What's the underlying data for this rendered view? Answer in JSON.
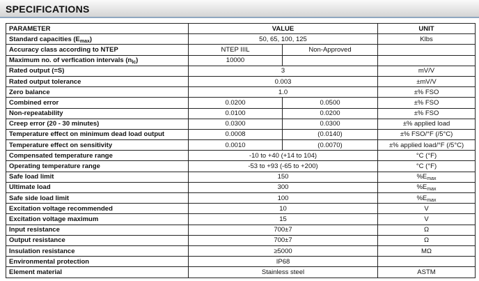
{
  "title": "SPECIFICATIONS",
  "table": {
    "header": [
      "PARAMETER",
      "VALUE",
      "UNIT"
    ],
    "rows": [
      {
        "parameter": [
          {
            "text": "Standard capacities (E"
          },
          {
            "sub": "max"
          },
          {
            "text": ")"
          }
        ],
        "value": [
          "50, 65, 100, 125"
        ],
        "unit": "Klbs"
      },
      {
        "parameter": "Accuracy class according to NTEP",
        "value": [
          "NTEP IIIL",
          "Non-Approved"
        ],
        "unit": null
      },
      {
        "parameter": [
          {
            "text": "Maximum no. of verfication intervals (n"
          },
          {
            "sub": "lc"
          },
          {
            "text": ")"
          }
        ],
        "value": [
          "10000",
          null
        ],
        "unit": null
      },
      {
        "parameter": "Rated output (=S)",
        "value": [
          "3"
        ],
        "unit": "mV/V"
      },
      {
        "parameter": "Rated output tolerance",
        "value": [
          "0.003"
        ],
        "unit": "±mV/V"
      },
      {
        "parameter": "Zero balance",
        "value": [
          "1.0"
        ],
        "unit": "±% FSO"
      },
      {
        "parameter": "Combined error",
        "value": [
          "0.0200",
          "0.0500"
        ],
        "unit": "±% FSO"
      },
      {
        "parameter": "Non-repeatability",
        "value": [
          "0.0100",
          "0.0200"
        ],
        "unit": "±% FSO"
      },
      {
        "parameter": "Creep error (20 - 30 minutes)",
        "value": [
          "0.0300",
          "0.0300"
        ],
        "unit": "±% applied load"
      },
      {
        "parameter": "Temperature effect on minimum dead load output",
        "value": [
          "0.0008",
          "(0.0140)"
        ],
        "unit": "±% FSO/°F (/5°C)"
      },
      {
        "parameter": "Temperature effect on sensitivity",
        "value": [
          "0.0010",
          "(0.0070)"
        ],
        "unit": "±% applied load/°F (/5°C)"
      },
      {
        "parameter": "Compensated temperature range",
        "value": [
          "-10 to +40 (+14 to 104)"
        ],
        "unit": "°C (°F)"
      },
      {
        "parameter": "Operating temperature range",
        "value": [
          "-53 to +93 (-65 to +200)"
        ],
        "unit": "°C (°F)"
      },
      {
        "parameter": "Safe load limit",
        "value": [
          "150"
        ],
        "unit": [
          {
            "text": "%E"
          },
          {
            "sub": "max"
          }
        ]
      },
      {
        "parameter": "Ultimate load",
        "value": [
          "300"
        ],
        "unit": [
          {
            "text": "%E"
          },
          {
            "sub": "max"
          }
        ]
      },
      {
        "parameter": "Safe side load limit",
        "value": [
          "100"
        ],
        "unit": [
          {
            "text": "%E"
          },
          {
            "sub": "max"
          }
        ]
      },
      {
        "parameter": "Excitation voltage recommended",
        "value": [
          "10"
        ],
        "unit": "V"
      },
      {
        "parameter": "Excitation voltage maximum",
        "value": [
          "15"
        ],
        "unit": "V"
      },
      {
        "parameter": "Input resistance",
        "value": [
          "700±7"
        ],
        "unit": "Ω"
      },
      {
        "parameter": "Output resistance",
        "value": [
          "700±7"
        ],
        "unit": "Ω"
      },
      {
        "parameter": "Insulation resistance",
        "value": [
          "≥5000"
        ],
        "unit": "MΩ"
      },
      {
        "parameter": "Environmental protection",
        "value": [
          "IP68"
        ],
        "unit": null
      },
      {
        "parameter": "Element material",
        "value": [
          "Stainless steel"
        ],
        "unit": "ASTM"
      }
    ]
  }
}
